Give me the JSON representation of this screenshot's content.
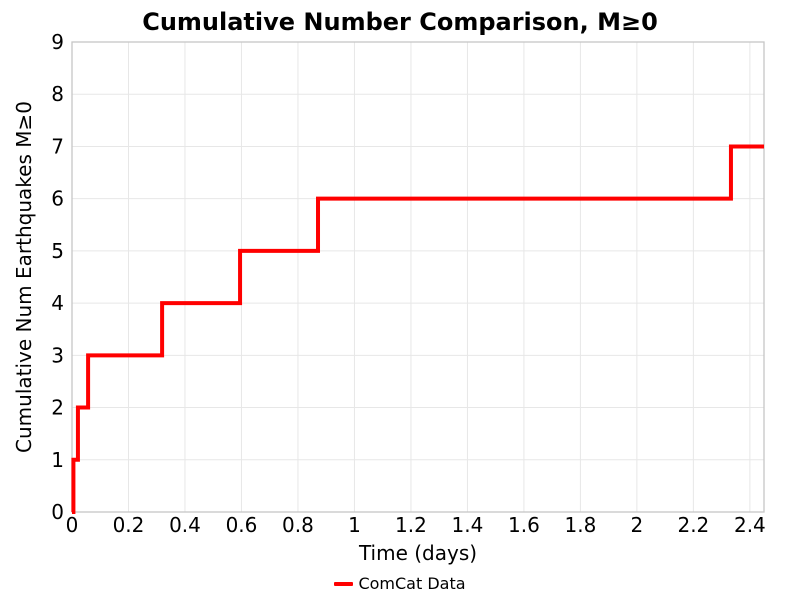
{
  "title": "Cumulative Number Comparison, M≥0",
  "colors": {
    "line": "#ff0000",
    "grid": "#e7e7e7",
    "spine": "#c6c6c6",
    "text": "#000000",
    "background": "#ffffff"
  },
  "legend": {
    "items": [
      {
        "label": "ComCat Data",
        "color": "#ff0000"
      }
    ],
    "position": "bottom-center"
  },
  "chart_data": {
    "type": "line",
    "subtype": "step-post",
    "title": "Cumulative Number Comparison, M≥0",
    "xlabel": "Time (days)",
    "ylabel": "Cumulative Num Earthquakes M≥0",
    "xlim": [
      0,
      2.45
    ],
    "ylim": [
      0,
      9
    ],
    "grid": true,
    "legend_position": "bottom-center",
    "xticks": [
      "0",
      "0.2",
      "0.4",
      "0.6",
      "0.8",
      "1",
      "1.2",
      "1.4",
      "1.6",
      "1.8",
      "2",
      "2.2",
      "2.4"
    ],
    "xtick_values": [
      0,
      0.2,
      0.4,
      0.6,
      0.8,
      1.0,
      1.2,
      1.4,
      1.6,
      1.8,
      2.0,
      2.2,
      2.4
    ],
    "yticks": [
      "0",
      "1",
      "2",
      "3",
      "4",
      "5",
      "6",
      "7",
      "8",
      "9"
    ],
    "ytick_values": [
      0,
      1,
      2,
      3,
      4,
      5,
      6,
      7,
      8,
      9
    ],
    "series": [
      {
        "name": "ComCat Data",
        "color": "#ff0000",
        "line_width": 4,
        "start_point": {
          "x": 0,
          "y": 0
        },
        "event_times_days": [
          0.005,
          0.021,
          0.057,
          0.319,
          0.595,
          0.871,
          2.333
        ],
        "cumulative_counts": [
          1,
          2,
          3,
          4,
          5,
          6,
          7
        ],
        "end_x": 2.45,
        "final_count": 7
      }
    ]
  }
}
